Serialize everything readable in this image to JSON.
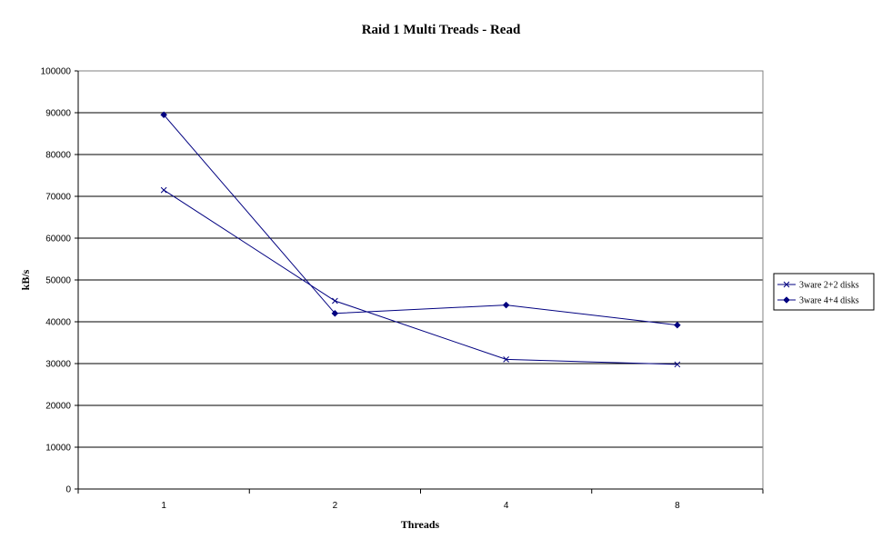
{
  "chart_data": {
    "type": "line",
    "title": "Raid 1 Multi Treads - Read",
    "xlabel": "Threads",
    "ylabel": "kB/s",
    "categories": [
      "1",
      "2",
      "4",
      "8"
    ],
    "ylim": [
      0,
      100000
    ],
    "yticks": [
      0,
      10000,
      20000,
      30000,
      40000,
      50000,
      60000,
      70000,
      80000,
      90000,
      100000
    ],
    "grid": true,
    "legend_position": "right",
    "series": [
      {
        "name": "3ware 2+2 disks",
        "marker": "x",
        "color": "#000080",
        "values": [
          71500,
          45000,
          31000,
          29800
        ]
      },
      {
        "name": "3ware 4+4 disks",
        "marker": "diamond",
        "color": "#000080",
        "values": [
          89500,
          42000,
          44000,
          39200
        ]
      }
    ]
  }
}
